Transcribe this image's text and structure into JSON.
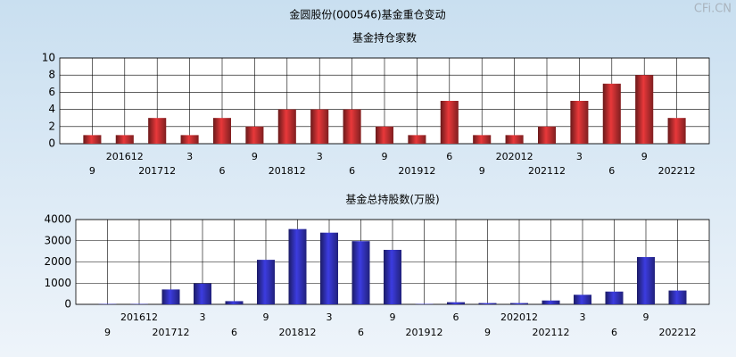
{
  "title": "金圆股份(000546)基金重仓变动",
  "watermark": "CFi.CN",
  "chart_data": [
    {
      "type": "bar",
      "title": "基金持仓家数",
      "categories": [
        "9",
        "201612",
        "201712",
        "3",
        "6",
        "9",
        "201812",
        "3",
        "6",
        "9",
        "201912",
        "6",
        "9",
        "202012",
        "202112",
        "3",
        "6",
        "9",
        "202212"
      ],
      "values": [
        1,
        1,
        3,
        1,
        3,
        2,
        4,
        4,
        4,
        2,
        1,
        5,
        1,
        1,
        2,
        5,
        7,
        8,
        3
      ],
      "color": "#e8383a",
      "ylim": [
        0,
        10
      ],
      "yticks": [
        0,
        2,
        4,
        6,
        8,
        10
      ],
      "grid": true
    },
    {
      "type": "bar",
      "title": "基金总持股数(万股)",
      "categories": [
        "9",
        "201612",
        "201712",
        "3",
        "6",
        "9",
        "201812",
        "3",
        "6",
        "9",
        "201912",
        "6",
        "9",
        "202012",
        "202112",
        "3",
        "6",
        "9",
        "202212"
      ],
      "values": [
        20,
        20,
        700,
        980,
        150,
        2100,
        3550,
        3380,
        2980,
        2570,
        20,
        100,
        60,
        60,
        180,
        450,
        600,
        2230,
        650
      ],
      "color": "#3c3ce0",
      "ylim": [
        0,
        4000
      ],
      "yticks": [
        0,
        1000,
        2000,
        3000,
        4000
      ],
      "grid": true
    }
  ]
}
